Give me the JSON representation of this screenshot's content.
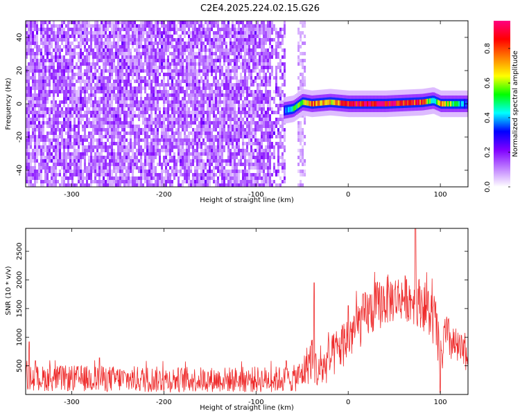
{
  "title": "C2E4.2025.224.02.15.G26",
  "chart_data": [
    {
      "type": "heatmap",
      "xlabel": "Height of straight line (km)",
      "ylabel": "Frequency (Hz)",
      "xlim": [
        -350,
        130
      ],
      "ylim": [
        -50,
        50
      ],
      "x_ticks": [
        -300,
        -200,
        -100,
        0,
        100
      ],
      "x_tick_labels": [
        "-300",
        "-200",
        "-100",
        "0",
        "100"
      ],
      "y_ticks": [
        -40,
        -20,
        0,
        20,
        40
      ],
      "y_tick_labels": [
        "-40",
        "-20",
        "0",
        "20",
        "40"
      ],
      "noise_region": {
        "x": [
          -350,
          -70
        ],
        "y": [
          -50,
          50
        ],
        "typical_amplitude": [
          0.05,
          0.2
        ]
      },
      "noise_strip": {
        "x": [
          -55,
          -48
        ],
        "y": [
          -50,
          50
        ]
      },
      "signal_band": {
        "x": [
          -70,
          130
        ],
        "center_frequency": 0,
        "peak_amplitude": 0.95,
        "ridge": [
          {
            "x": -70,
            "amp": 0.35,
            "f": -4
          },
          {
            "x": -60,
            "amp": 0.5,
            "f": -3
          },
          {
            "x": -50,
            "amp": 0.6,
            "f": 1
          },
          {
            "x": -40,
            "amp": 0.8,
            "f": 0
          },
          {
            "x": -20,
            "amp": 0.7,
            "f": 1
          },
          {
            "x": 0,
            "amp": 0.9,
            "f": 0
          },
          {
            "x": 40,
            "amp": 0.95,
            "f": 0
          },
          {
            "x": 80,
            "amp": 0.85,
            "f": 1
          },
          {
            "x": 92,
            "amp": 0.4,
            "f": 2
          },
          {
            "x": 100,
            "amp": 0.75,
            "f": 0
          },
          {
            "x": 130,
            "amp": 0.3,
            "f": 0
          }
        ]
      },
      "colorbar": {
        "label": "Normalized spectral amplitude",
        "ticks": [
          0.0,
          0.2,
          0.4,
          0.6,
          0.8
        ],
        "tick_labels": [
          "0.0",
          "0.2",
          "0.4",
          "0.6",
          "0.8"
        ],
        "colors": [
          "#ffffff",
          "#c080ff",
          "#8000ff",
          "#0000ff",
          "#00ffff",
          "#00ff00",
          "#ffff00",
          "#ff8000",
          "#ff0000",
          "#ff0080"
        ]
      }
    },
    {
      "type": "line",
      "xlabel": "Height of straight line (km)",
      "ylabel": "SNR (10 * v/v)",
      "xlim": [
        -350,
        130
      ],
      "ylim": [
        0,
        2900
      ],
      "x_ticks": [
        -300,
        -200,
        -100,
        0,
        100
      ],
      "x_tick_labels": [
        "-300",
        "-200",
        "-100",
        "0",
        "100"
      ],
      "y_ticks": [
        500,
        1000,
        1500,
        2000,
        2500
      ],
      "y_tick_labels": [
        "500",
        "1000",
        "1500",
        "2000",
        "2500"
      ],
      "series": [
        {
          "color": "#ee2a2a",
          "envelope": [
            {
              "x": -350,
              "mean": 280,
              "spread": 220
            },
            {
              "x": -300,
              "mean": 280,
              "spread": 230
            },
            {
              "x": -250,
              "mean": 270,
              "spread": 230
            },
            {
              "x": -200,
              "mean": 260,
              "spread": 230
            },
            {
              "x": -150,
              "mean": 260,
              "spread": 220
            },
            {
              "x": -100,
              "mean": 260,
              "spread": 230
            },
            {
              "x": -60,
              "mean": 270,
              "spread": 230
            },
            {
              "x": -50,
              "mean": 350,
              "spread": 280
            },
            {
              "x": -45,
              "mean": 500,
              "spread": 350
            },
            {
              "x": -38,
              "mean": 700,
              "spread": 450
            },
            {
              "x": -33,
              "mean": 350,
              "spread": 300
            },
            {
              "x": -25,
              "mean": 500,
              "spread": 350
            },
            {
              "x": -15,
              "mean": 700,
              "spread": 400
            },
            {
              "x": 0,
              "mean": 1000,
              "spread": 450
            },
            {
              "x": 20,
              "mean": 1400,
              "spread": 450
            },
            {
              "x": 40,
              "mean": 1650,
              "spread": 450
            },
            {
              "x": 60,
              "mean": 1700,
              "spread": 400
            },
            {
              "x": 80,
              "mean": 1600,
              "spread": 450
            },
            {
              "x": 95,
              "mean": 1250,
              "spread": 500
            },
            {
              "x": 100,
              "mean": 500,
              "spread": 400
            },
            {
              "x": 105,
              "mean": 1050,
              "spread": 400
            },
            {
              "x": 115,
              "mean": 850,
              "spread": 350
            },
            {
              "x": 130,
              "mean": 650,
              "spread": 250
            }
          ],
          "spikes": [
            {
              "x": -346,
              "y": 920
            },
            {
              "x": -270,
              "y": 640
            },
            {
              "x": -37,
              "y": 1950
            },
            {
              "x": 0,
              "y": 1550
            },
            {
              "x": 73,
              "y": 2900
            },
            {
              "x": 100,
              "y": 30
            }
          ]
        }
      ]
    }
  ]
}
